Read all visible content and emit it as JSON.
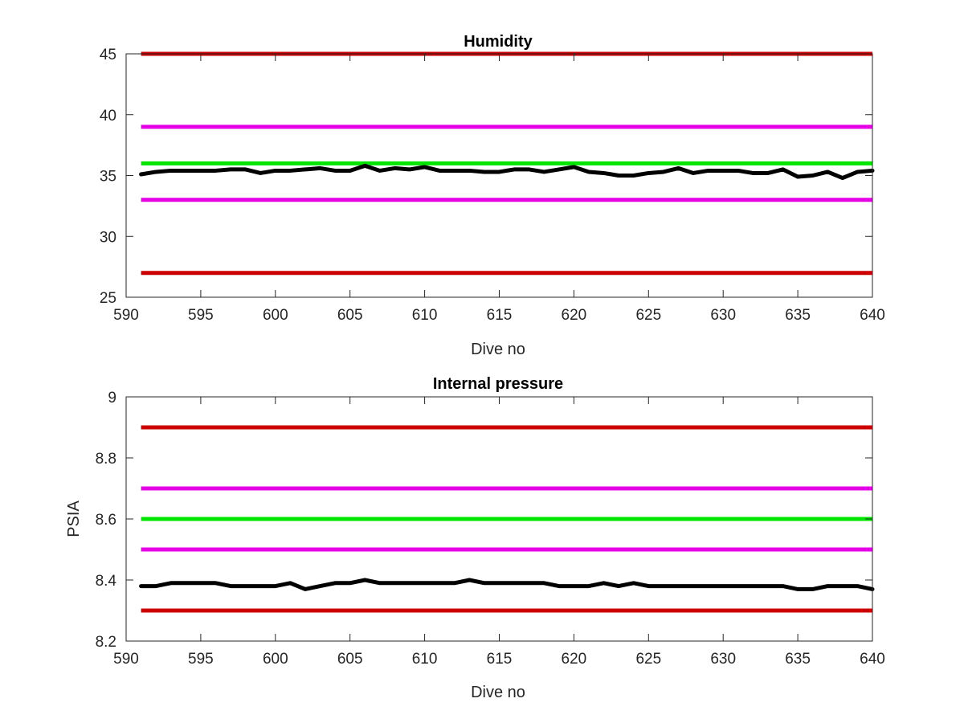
{
  "chart_data": [
    {
      "type": "line",
      "title": "Humidity",
      "xlabel": "Dive no",
      "ylabel": "",
      "xlim": [
        590,
        640
      ],
      "ylim": [
        25,
        45
      ],
      "xticks": [
        590,
        595,
        600,
        605,
        610,
        615,
        620,
        625,
        630,
        635,
        640
      ],
      "yticks": [
        25,
        30,
        35,
        40,
        45
      ],
      "grid": false,
      "reference_lines": [
        {
          "y": 45,
          "x": [
            591,
            640
          ],
          "color": "#cc0000"
        },
        {
          "y": 39,
          "x": [
            591,
            640
          ],
          "color": "#e600e6"
        },
        {
          "y": 36,
          "x": [
            591,
            640
          ],
          "color": "#00e600"
        },
        {
          "y": 33,
          "x": [
            591,
            640
          ],
          "color": "#e600e6"
        },
        {
          "y": 27,
          "x": [
            591,
            640
          ],
          "color": "#cc0000"
        }
      ],
      "series": [
        {
          "color": "#000000",
          "x": [
            591,
            592,
            593,
            594,
            595,
            596,
            597,
            598,
            599,
            600,
            601,
            602,
            603,
            604,
            605,
            606,
            607,
            608,
            609,
            610,
            611,
            612,
            613,
            614,
            615,
            616,
            617,
            618,
            619,
            620,
            621,
            622,
            623,
            624,
            625,
            626,
            627,
            628,
            629,
            630,
            631,
            632,
            633,
            634,
            635,
            636,
            637,
            638,
            639,
            640
          ],
          "values": [
            35.1,
            35.3,
            35.4,
            35.4,
            35.4,
            35.4,
            35.5,
            35.5,
            35.2,
            35.4,
            35.4,
            35.5,
            35.6,
            35.4,
            35.4,
            35.8,
            35.4,
            35.6,
            35.5,
            35.7,
            35.4,
            35.4,
            35.4,
            35.3,
            35.3,
            35.5,
            35.5,
            35.3,
            35.5,
            35.7,
            35.3,
            35.2,
            35.0,
            35.0,
            35.2,
            35.3,
            35.6,
            35.2,
            35.4,
            35.4,
            35.4,
            35.2,
            35.2,
            35.5,
            34.9,
            35.0,
            35.3,
            34.8,
            35.3,
            35.4
          ]
        }
      ]
    },
    {
      "type": "line",
      "title": "Internal pressure",
      "xlabel": "Dive no",
      "ylabel": "PSIA",
      "xlim": [
        590,
        640
      ],
      "ylim": [
        8.2,
        9.0
      ],
      "xticks": [
        590,
        595,
        600,
        605,
        610,
        615,
        620,
        625,
        630,
        635,
        640
      ],
      "yticks": [
        8.2,
        8.4,
        8.6,
        8.8,
        9.0
      ],
      "ytick_labels": [
        "8.2",
        "8.4",
        "8.6",
        "8.8",
        "9"
      ],
      "grid": false,
      "reference_lines": [
        {
          "y": 8.9,
          "x": [
            591,
            640
          ],
          "color": "#cc0000"
        },
        {
          "y": 8.7,
          "x": [
            591,
            640
          ],
          "color": "#e600e6"
        },
        {
          "y": 8.6,
          "x": [
            591,
            640
          ],
          "color": "#00e600"
        },
        {
          "y": 8.5,
          "x": [
            591,
            640
          ],
          "color": "#e600e6"
        },
        {
          "y": 8.3,
          "x": [
            591,
            640
          ],
          "color": "#cc0000"
        }
      ],
      "series": [
        {
          "color": "#000000",
          "x": [
            591,
            592,
            593,
            594,
            595,
            596,
            597,
            598,
            599,
            600,
            601,
            602,
            603,
            604,
            605,
            606,
            607,
            608,
            609,
            610,
            611,
            612,
            613,
            614,
            615,
            616,
            617,
            618,
            619,
            620,
            621,
            622,
            623,
            624,
            625,
            626,
            627,
            628,
            629,
            630,
            631,
            632,
            633,
            634,
            635,
            636,
            637,
            638,
            639,
            640
          ],
          "values": [
            8.38,
            8.38,
            8.39,
            8.39,
            8.39,
            8.39,
            8.38,
            8.38,
            8.38,
            8.38,
            8.39,
            8.37,
            8.38,
            8.39,
            8.39,
            8.4,
            8.39,
            8.39,
            8.39,
            8.39,
            8.39,
            8.39,
            8.4,
            8.39,
            8.39,
            8.39,
            8.39,
            8.39,
            8.38,
            8.38,
            8.38,
            8.39,
            8.38,
            8.39,
            8.38,
            8.38,
            8.38,
            8.38,
            8.38,
            8.38,
            8.38,
            8.38,
            8.38,
            8.38,
            8.37,
            8.37,
            8.38,
            8.38,
            8.38,
            8.37
          ]
        }
      ]
    }
  ]
}
